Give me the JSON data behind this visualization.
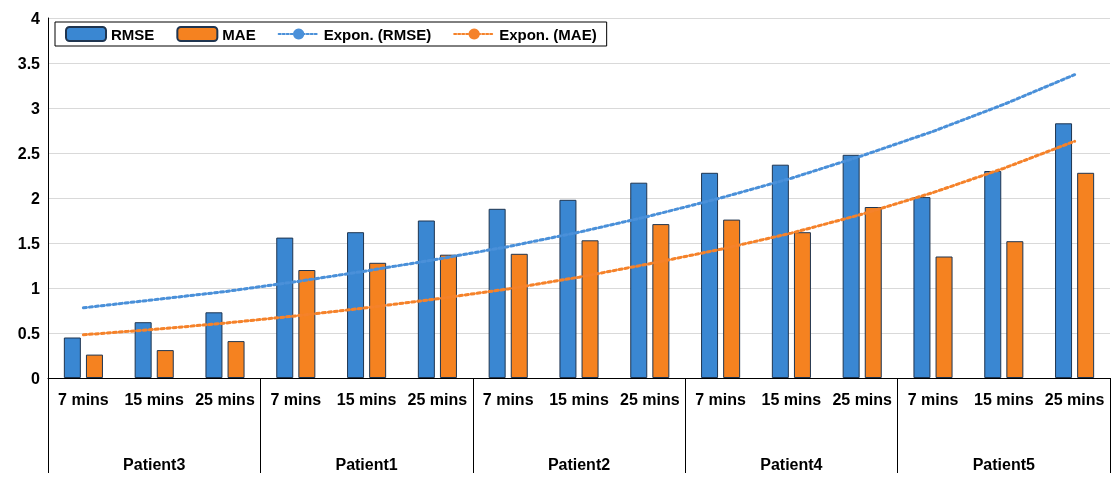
{
  "chart_data": {
    "type": "bar",
    "categories": [
      "7 mins",
      "15 mins",
      "25 mins",
      "7 mins",
      "15 mins",
      "25 mins",
      "7 mins",
      "15 mins",
      "25 mins",
      "7 mins",
      "15 mins",
      "25 mins",
      "7 mins",
      "15 mins",
      "25 mins"
    ],
    "series": [
      {
        "name": "RMSE",
        "color": "#3a87d2",
        "values": [
          0.45,
          0.62,
          0.73,
          1.56,
          1.62,
          1.75,
          1.88,
          1.98,
          2.17,
          2.28,
          2.37,
          2.48,
          2.01,
          2.3,
          2.83
        ]
      },
      {
        "name": "MAE",
        "color": "#f58220",
        "values": [
          0.26,
          0.31,
          0.41,
          1.2,
          1.28,
          1.37,
          1.38,
          1.53,
          1.71,
          1.76,
          1.62,
          1.9,
          1.35,
          1.52,
          2.28
        ]
      },
      {
        "name": "Expon. (RMSE)",
        "type": "line",
        "color": "#4a90d9",
        "line_style": "dotted",
        "values": [
          0.78,
          0.87,
          0.96,
          1.07,
          1.19,
          1.32,
          1.46,
          1.62,
          1.8,
          2.0,
          2.22,
          2.47,
          2.74,
          3.04,
          3.37
        ]
      },
      {
        "name": "Expon. (MAE)",
        "type": "line",
        "color": "#f5822a",
        "line_style": "dotted",
        "values": [
          0.48,
          0.54,
          0.61,
          0.69,
          0.78,
          0.88,
          0.99,
          1.12,
          1.27,
          1.43,
          1.61,
          1.82,
          2.06,
          2.33,
          2.63
        ]
      }
    ],
    "annotations": [
      "Patient3",
      "Patient1",
      "Patient2",
      "Patient4",
      "Patient5"
    ],
    "ylim": [
      0,
      4
    ],
    "yticks": [
      0,
      0.5,
      1,
      1.5,
      2,
      2.5,
      3,
      3.5,
      4
    ],
    "grid": "y",
    "legend": "top left",
    "marker": "none"
  }
}
